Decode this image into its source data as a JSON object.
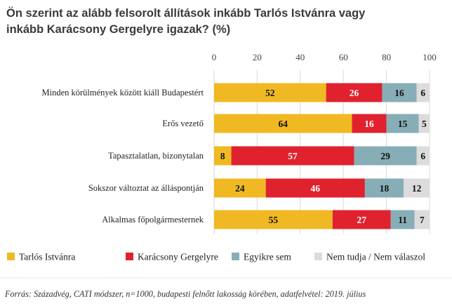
{
  "title_lines": [
    "Ön szerint az alább felsorolt állítások inkább Tarlós Istvánra vagy",
    "inkább Karácsony Gergelyre igazak? (%)"
  ],
  "source": "Forrás: Századvég, CATI módszer, n=1000, budapesti felnőtt lakosság körében, adatfelvétel: 2019. július",
  "chart_data": {
    "type": "bar",
    "orientation": "horizontal",
    "stacked": true,
    "title": "Ön szerint az alább felsorolt állítások inkább Tarlós Istvánra vagy inkább Karácsony Gergelyre igazak? (%)",
    "categories": [
      "Minden körülmények között kiáll Budapestért",
      "Erős vezető",
      "Tapasztalatlan, bizonytalan",
      "Sokszor változtat az álláspontján",
      "Alkalmas főpolgármesternek"
    ],
    "series": [
      {
        "name": "Tarlós Istvánra",
        "color": "#f0b923",
        "values": [
          52,
          64,
          8,
          24,
          55
        ]
      },
      {
        "name": "Karácsony Gergelyre",
        "color": "#e0222f",
        "values": [
          26,
          16,
          57,
          46,
          27
        ]
      },
      {
        "name": "Egyikre sem",
        "color": "#87aeb7",
        "values": [
          16,
          15,
          29,
          18,
          11
        ]
      },
      {
        "name": "Nem tudja / Nem válaszol",
        "color": "#dcdcdc",
        "values": [
          6,
          5,
          6,
          12,
          7
        ]
      }
    ],
    "xticks": [
      0,
      20,
      40,
      60,
      80,
      100
    ],
    "xlim": [
      0,
      100
    ],
    "grid": true,
    "legend_position": "bottom"
  }
}
